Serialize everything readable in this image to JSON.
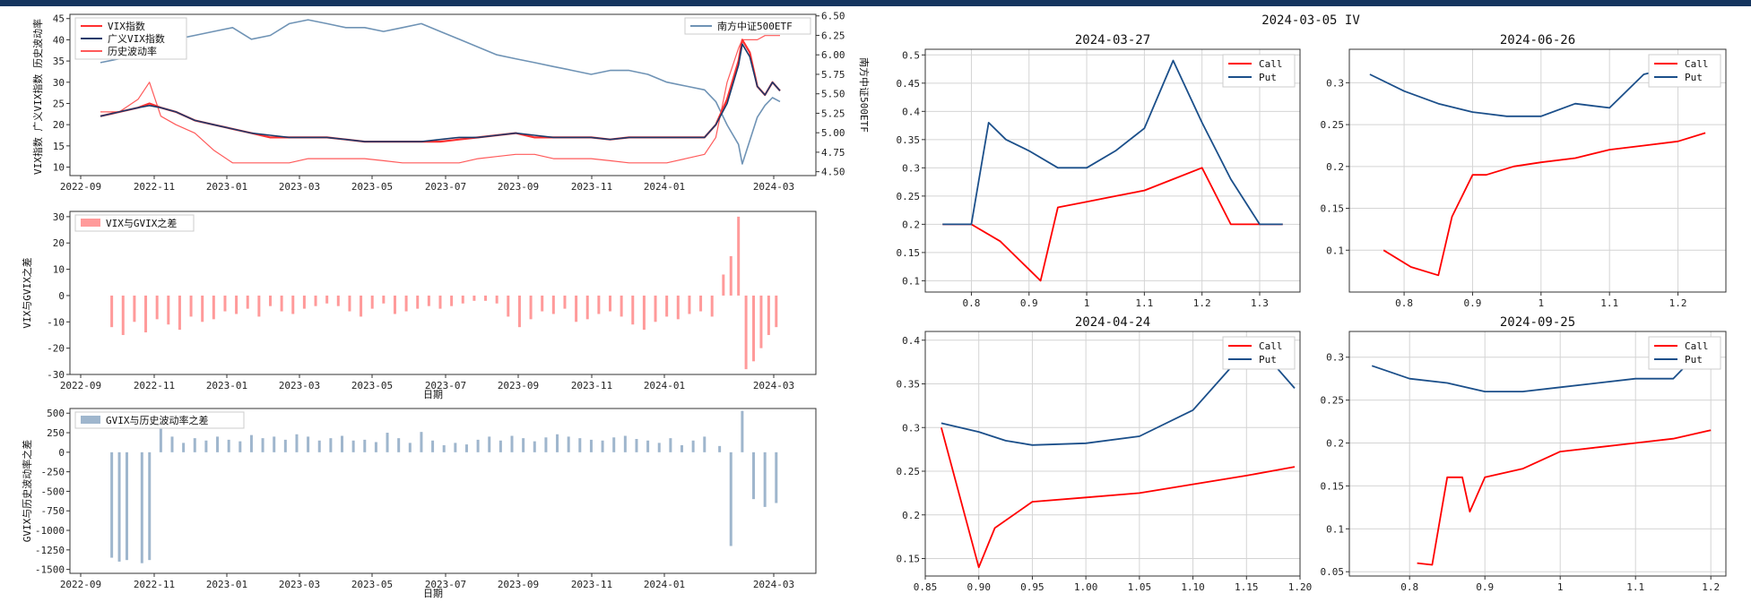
{
  "colors": {
    "vix": "#ff3030",
    "gvix": "#1a3a6b",
    "hv": "#ff5a5a",
    "etf": "#6f93b5",
    "diff1": "#ff9a9a",
    "diff2": "#9fb6cd",
    "call": "#ff0000",
    "put": "#1b4f8a",
    "header": "#15355f"
  },
  "chart_data": [
    {
      "id": "vix_hv",
      "type": "line",
      "ylabel_left": "VIX指数 广义VIX指数 历史波动率",
      "ylabel_right": "南方中证500ETF",
      "x_ticks": [
        "2022-09",
        "2022-11",
        "2023-01",
        "2023-03",
        "2023-05",
        "2023-07",
        "2023-09",
        "2023-11",
        "2024-01",
        "2024-03"
      ],
      "y_ticks_left": [
        10,
        15,
        20,
        25,
        30,
        35,
        40,
        45
      ],
      "y_ticks_right": [
        "4.50",
        "4.75",
        "5.00",
        "5.25",
        "5.50",
        "5.75",
        "6.00",
        "6.25",
        "6.50"
      ],
      "ylim_left": [
        8,
        46
      ],
      "ylim_right": [
        4.45,
        6.52
      ],
      "legend_left": [
        "VIX指数",
        "广义VIX指数",
        "历史波动率"
      ],
      "legend_right": [
        "南方中证500ETF"
      ],
      "x": [
        0,
        0.5,
        1,
        1.3,
        1.6,
        2,
        2.5,
        3,
        3.5,
        4,
        4.5,
        5,
        5.5,
        6,
        6.5,
        7,
        7.5,
        8,
        8.5,
        9,
        9.5,
        10,
        10.5,
        11,
        11.5,
        12,
        12.5,
        13,
        13.5,
        14,
        14.5,
        15,
        15.5,
        16,
        16.3,
        16.6,
        16.9,
        17,
        17.2,
        17.4,
        17.6,
        17.8,
        18
      ],
      "series": [
        {
          "name": "VIX指数",
          "axis": "left",
          "values": [
            22,
            23,
            24,
            25,
            24,
            23,
            21,
            20,
            19,
            18,
            17,
            17,
            17,
            17,
            16.5,
            16,
            16,
            16,
            16,
            16,
            16.5,
            17,
            17.5,
            18,
            17,
            17,
            17,
            17,
            16.5,
            17,
            17,
            17,
            17,
            17,
            20,
            26,
            35,
            40,
            37,
            29,
            27,
            30,
            28
          ]
        },
        {
          "name": "广义VIX指数",
          "axis": "left",
          "values": [
            22,
            23,
            24,
            24.5,
            24,
            23,
            21,
            20,
            19,
            18,
            17.5,
            17,
            17,
            17,
            16.5,
            16,
            16,
            16,
            16,
            16.5,
            17,
            17,
            17.5,
            18,
            17.5,
            17,
            17,
            17,
            16.5,
            17,
            17,
            17,
            17,
            17,
            20,
            25,
            34,
            39,
            36,
            29,
            27,
            30,
            28
          ]
        },
        {
          "name": "历史波动率",
          "axis": "left",
          "values": [
            23,
            23,
            26,
            30,
            22,
            20,
            18,
            14,
            11,
            11,
            11,
            11,
            12,
            12,
            12,
            12,
            11.5,
            11,
            11,
            11,
            11,
            12,
            12.5,
            13,
            13,
            12,
            12,
            12,
            11.5,
            11,
            11,
            11,
            12,
            13,
            17,
            30,
            38,
            40,
            40,
            40,
            41,
            41,
            41
          ]
        },
        {
          "name": "南方中证500ETF",
          "axis": "right",
          "values": [
            5.9,
            5.95,
            6.0,
            6.1,
            6.15,
            6.2,
            6.25,
            6.3,
            6.35,
            6.2,
            6.25,
            6.4,
            6.45,
            6.4,
            6.35,
            6.35,
            6.3,
            6.35,
            6.4,
            6.3,
            6.2,
            6.1,
            6.0,
            5.95,
            5.9,
            5.85,
            5.8,
            5.75,
            5.8,
            5.8,
            5.75,
            5.65,
            5.6,
            5.55,
            5.4,
            5.1,
            4.85,
            4.6,
            4.9,
            5.2,
            5.35,
            5.45,
            5.4
          ]
        }
      ]
    },
    {
      "id": "vix_gvix_diff",
      "type": "bar",
      "xlabel": "日期",
      "ylabel": "VIX与GVIX之差",
      "legend": [
        "VIX与GVIX之差"
      ],
      "ylim": [
        -30,
        32
      ],
      "y_ticks": [
        -30,
        -20,
        -10,
        0,
        10,
        20,
        30
      ],
      "x_ticks": [
        "2022-09",
        "2022-11",
        "2023-01",
        "2023-03",
        "2023-05",
        "2023-07",
        "2023-09",
        "2023-11",
        "2024-01",
        "2024-03"
      ],
      "x": [
        0.3,
        0.6,
        0.9,
        1.2,
        1.5,
        1.8,
        2.1,
        2.4,
        2.7,
        3.0,
        3.3,
        3.6,
        3.9,
        4.2,
        4.5,
        4.8,
        5.1,
        5.4,
        5.7,
        6.0,
        6.3,
        6.6,
        6.9,
        7.2,
        7.5,
        7.8,
        8.1,
        8.4,
        8.7,
        9.0,
        9.3,
        9.6,
        9.9,
        10.2,
        10.5,
        10.8,
        11.1,
        11.4,
        11.7,
        12.0,
        12.3,
        12.6,
        12.9,
        13.2,
        13.5,
        13.8,
        14.1,
        14.4,
        14.7,
        15.0,
        15.3,
        15.6,
        15.9,
        16.2,
        16.5,
        16.7,
        16.9,
        17.1,
        17.3,
        17.5,
        17.7,
        17.9
      ],
      "values": [
        -12,
        -15,
        -10,
        -14,
        -9,
        -11,
        -13,
        -8,
        -10,
        -9,
        -6,
        -7,
        -5,
        -8,
        -4,
        -6,
        -7,
        -5,
        -4,
        -3,
        -4,
        -6,
        -8,
        -5,
        -3,
        -7,
        -6,
        -5,
        -4,
        -5,
        -4,
        -3,
        -2,
        -2,
        -3,
        -8,
        -12,
        -9,
        -6,
        -7,
        -5,
        -10,
        -9,
        -7,
        -6,
        -8,
        -11,
        -13,
        -10,
        -8,
        -9,
        -7,
        -6,
        -8,
        8,
        15,
        30,
        -28,
        -25,
        -20,
        -15,
        -12
      ]
    },
    {
      "id": "gvix_hv_diff",
      "type": "bar",
      "xlabel": "日期",
      "ylabel": "GVIX与历史波动率之差",
      "legend": [
        "GVIX与历史波动率之差"
      ],
      "ylim": [
        -1550,
        560
      ],
      "y_ticks": [
        -1500,
        -1250,
        -1000,
        -750,
        -500,
        -250,
        0,
        250,
        500
      ],
      "x_ticks": [
        "2022-09",
        "2022-11",
        "2023-01",
        "2023-03",
        "2023-05",
        "2023-07",
        "2023-09",
        "2023-11",
        "2024-01",
        "2024-03"
      ],
      "x": [
        0.3,
        0.5,
        0.7,
        1.1,
        1.3,
        1.6,
        1.9,
        2.2,
        2.5,
        2.8,
        3.1,
        3.4,
        3.7,
        4.0,
        4.3,
        4.6,
        4.9,
        5.2,
        5.5,
        5.8,
        6.1,
        6.4,
        6.7,
        7.0,
        7.3,
        7.6,
        7.9,
        8.2,
        8.5,
        8.8,
        9.1,
        9.4,
        9.7,
        10.0,
        10.3,
        10.6,
        10.9,
        11.2,
        11.5,
        11.8,
        12.1,
        12.4,
        12.7,
        13.0,
        13.3,
        13.6,
        13.9,
        14.2,
        14.5,
        14.8,
        15.1,
        15.4,
        15.7,
        16.0,
        16.4,
        16.7,
        17.0,
        17.3,
        17.6,
        17.9
      ],
      "values": [
        -1350,
        -1400,
        -1380,
        -1420,
        -1380,
        300,
        200,
        120,
        180,
        150,
        200,
        160,
        140,
        220,
        180,
        200,
        160,
        230,
        200,
        150,
        180,
        210,
        150,
        160,
        130,
        250,
        180,
        120,
        260,
        150,
        90,
        120,
        100,
        160,
        200,
        150,
        210,
        180,
        140,
        190,
        230,
        200,
        180,
        160,
        150,
        190,
        210,
        170,
        150,
        120,
        180,
        90,
        150,
        200,
        80,
        -1200,
        530,
        -600,
        -700,
        -650
      ]
    },
    {
      "id": "iv_20240327",
      "type": "line",
      "suptitle": "2024-03-05 IV",
      "title": "2024-03-27",
      "legend": [
        "Call",
        "Put"
      ],
      "xlim": [
        0.72,
        1.37
      ],
      "ylim": [
        0.08,
        0.51
      ],
      "x_ticks": [
        0.8,
        0.9,
        1.0,
        1.1,
        1.2,
        1.3
      ],
      "y_ticks": [
        0.1,
        0.15,
        0.2,
        0.25,
        0.3,
        0.35,
        0.4,
        0.45,
        0.5
      ],
      "series": [
        {
          "name": "Call",
          "x": [
            0.75,
            0.8,
            0.85,
            0.9,
            0.92,
            0.95,
            1.0,
            1.05,
            1.1,
            1.15,
            1.2,
            1.25,
            1.3,
            1.34
          ],
          "values": [
            0.2,
            0.2,
            0.17,
            0.12,
            0.1,
            0.23,
            0.24,
            0.25,
            0.26,
            0.28,
            0.3,
            0.2,
            0.2,
            0.2
          ]
        },
        {
          "name": "Put",
          "x": [
            0.75,
            0.8,
            0.83,
            0.86,
            0.9,
            0.95,
            1.0,
            1.05,
            1.1,
            1.15,
            1.2,
            1.25,
            1.3,
            1.34
          ],
          "values": [
            0.2,
            0.2,
            0.38,
            0.35,
            0.33,
            0.3,
            0.3,
            0.33,
            0.37,
            0.49,
            0.38,
            0.28,
            0.2,
            0.2
          ]
        }
      ]
    },
    {
      "id": "iv_20240626",
      "type": "line",
      "title": "2024-06-26",
      "legend": [
        "Call",
        "Put"
      ],
      "xlim": [
        0.72,
        1.27
      ],
      "ylim": [
        0.05,
        0.34
      ],
      "x_ticks": [
        0.8,
        0.9,
        1.0,
        1.1,
        1.2
      ],
      "y_ticks": [
        0.1,
        0.15,
        0.2,
        0.25,
        0.3
      ],
      "series": [
        {
          "name": "Call",
          "x": [
            0.77,
            0.81,
            0.85,
            0.87,
            0.9,
            0.92,
            0.96,
            1.0,
            1.05,
            1.1,
            1.15,
            1.2,
            1.24
          ],
          "values": [
            0.1,
            0.08,
            0.07,
            0.14,
            0.19,
            0.19,
            0.2,
            0.205,
            0.21,
            0.22,
            0.225,
            0.23,
            0.24
          ]
        },
        {
          "name": "Put",
          "x": [
            0.75,
            0.8,
            0.85,
            0.9,
            0.95,
            1.0,
            1.05,
            1.1,
            1.15,
            1.2,
            1.24
          ],
          "values": [
            0.31,
            0.29,
            0.275,
            0.265,
            0.26,
            0.26,
            0.275,
            0.27,
            0.31,
            0.32,
            0.32
          ]
        }
      ]
    },
    {
      "id": "iv_20240424",
      "type": "line",
      "title": "2024-04-24",
      "legend": [
        "Call",
        "Put"
      ],
      "xlim": [
        0.85,
        1.2
      ],
      "ylim": [
        0.13,
        0.41
      ],
      "x_ticks": [
        "0.85",
        "0.90",
        "0.95",
        "1.00",
        "1.05",
        "1.10",
        "1.15",
        "1.20"
      ],
      "y_ticks": [
        0.15,
        0.2,
        0.25,
        0.3,
        0.35,
        0.4
      ],
      "series": [
        {
          "name": "Call",
          "x": [
            0.865,
            0.9,
            0.915,
            0.95,
            1.0,
            1.05,
            1.1,
            1.15,
            1.195
          ],
          "values": [
            0.3,
            0.14,
            0.185,
            0.215,
            0.22,
            0.225,
            0.235,
            0.245,
            0.255
          ]
        },
        {
          "name": "Put",
          "x": [
            0.865,
            0.9,
            0.925,
            0.95,
            1.0,
            1.05,
            1.1,
            1.14,
            1.17,
            1.195
          ],
          "values": [
            0.305,
            0.295,
            0.285,
            0.28,
            0.282,
            0.29,
            0.32,
            0.375,
            0.38,
            0.345
          ]
        }
      ]
    },
    {
      "id": "iv_20240925",
      "type": "line",
      "title": "2024-09-25",
      "legend": [
        "Call",
        "Put"
      ],
      "xlim": [
        0.72,
        1.22
      ],
      "ylim": [
        0.045,
        0.33
      ],
      "x_ticks": [
        0.8,
        0.9,
        1.0,
        1.1,
        1.2
      ],
      "y_ticks": [
        0.05,
        0.1,
        0.15,
        0.2,
        0.25,
        0.3
      ],
      "series": [
        {
          "name": "Call",
          "x": [
            0.81,
            0.83,
            0.85,
            0.87,
            0.88,
            0.9,
            0.95,
            1.0,
            1.05,
            1.1,
            1.15,
            1.2
          ],
          "values": [
            0.06,
            0.058,
            0.16,
            0.16,
            0.12,
            0.16,
            0.17,
            0.19,
            0.195,
            0.2,
            0.205,
            0.215
          ]
        },
        {
          "name": "Put",
          "x": [
            0.75,
            0.8,
            0.85,
            0.9,
            0.95,
            1.0,
            1.05,
            1.1,
            1.15,
            1.2
          ],
          "values": [
            0.29,
            0.275,
            0.27,
            0.26,
            0.26,
            0.265,
            0.27,
            0.275,
            0.275,
            0.32
          ]
        }
      ]
    }
  ]
}
